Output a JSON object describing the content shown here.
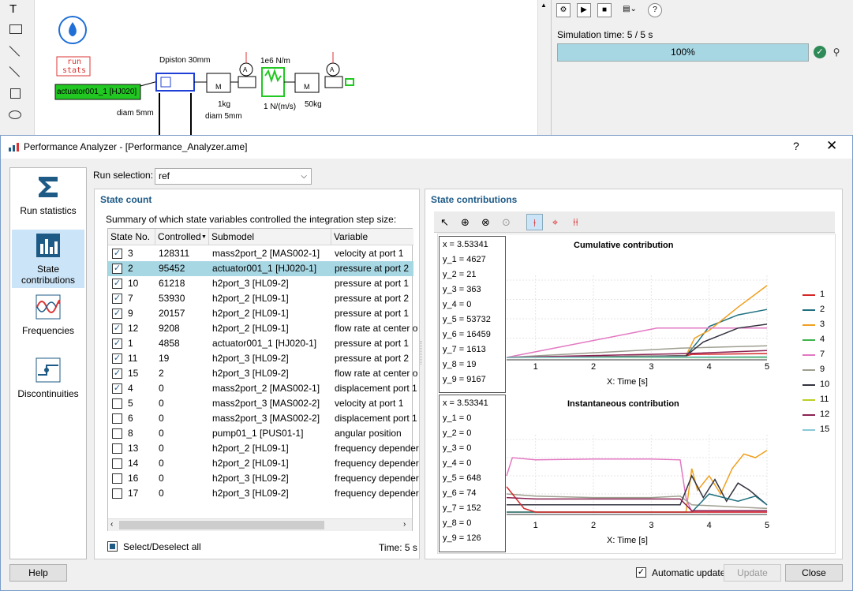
{
  "canvas": {
    "run_stats_label": "run\nstats",
    "actuator_label": "actuator001_1 [HJ020]",
    "labels": {
      "dpiston": "Dpiston 30mm",
      "spring": "1e6 N/m",
      "damper": "1 N/(m/s)",
      "mass1": "1kg",
      "diam1": "diam 5mm",
      "diam2": "diam 5mm",
      "mass2": "50kg"
    }
  },
  "simulation": {
    "time_text": "Simulation time: 5 / 5 s",
    "progress_text": "100%",
    "progress": 100
  },
  "dialog": {
    "title": "Performance Analyzer - [Performance_Analyzer.ame]",
    "help_glyph": "?",
    "close_glyph": "✕",
    "nav": [
      {
        "label": "Run statistics",
        "icon": "sigma-icon",
        "selected": false
      },
      {
        "label": "State contributions",
        "icon": "bar-chart-icon",
        "selected": true
      },
      {
        "label": "Frequencies",
        "icon": "wave-icon",
        "selected": false
      },
      {
        "label": "Discontinuities",
        "icon": "step-icon",
        "selected": false
      }
    ],
    "run_selection_label": "Run selection:",
    "run_selection_value": "ref",
    "state_count": {
      "title": "State count",
      "summary": "Summary of which state variables controlled the integration step size:",
      "columns": [
        "State No.",
        "Controlled",
        "Submodel",
        "Variable"
      ],
      "rows": [
        {
          "checked": true,
          "no": "3",
          "controlled": "128311",
          "submodel": "mass2port_2 [MAS002-1]",
          "variable": "velocity at port 1",
          "selected": false
        },
        {
          "checked": true,
          "no": "2",
          "controlled": "95452",
          "submodel": "actuator001_1 [HJ020-1]",
          "variable": "pressure at port 2",
          "selected": true
        },
        {
          "checked": true,
          "no": "10",
          "controlled": "61218",
          "submodel": "h2port_3 [HL09-2]",
          "variable": "pressure at port 1",
          "selected": false
        },
        {
          "checked": true,
          "no": "7",
          "controlled": "53930",
          "submodel": "h2port_2 [HL09-1]",
          "variable": "pressure at port 2",
          "selected": false
        },
        {
          "checked": true,
          "no": "9",
          "controlled": "20157",
          "submodel": "h2port_2 [HL09-1]",
          "variable": "pressure at port 1",
          "selected": false
        },
        {
          "checked": true,
          "no": "12",
          "controlled": "9208",
          "submodel": "h2port_2 [HL09-1]",
          "variable": "flow rate at center o",
          "selected": false
        },
        {
          "checked": true,
          "no": "1",
          "controlled": "4858",
          "submodel": "actuator001_1 [HJ020-1]",
          "variable": "pressure at port 1",
          "selected": false
        },
        {
          "checked": true,
          "no": "11",
          "controlled": "19",
          "submodel": "h2port_3 [HL09-2]",
          "variable": "pressure at port 2",
          "selected": false
        },
        {
          "checked": true,
          "no": "15",
          "controlled": "2",
          "submodel": "h2port_3 [HL09-2]",
          "variable": "flow rate at center o",
          "selected": false
        },
        {
          "checked": true,
          "no": "4",
          "controlled": "0",
          "submodel": "mass2port_2 [MAS002-1]",
          "variable": "displacement port 1",
          "selected": false
        },
        {
          "checked": false,
          "no": "5",
          "controlled": "0",
          "submodel": "mass2port_3 [MAS002-2]",
          "variable": "velocity at port 1",
          "selected": false
        },
        {
          "checked": false,
          "no": "6",
          "controlled": "0",
          "submodel": "mass2port_3 [MAS002-2]",
          "variable": "displacement port 1",
          "selected": false
        },
        {
          "checked": false,
          "no": "8",
          "controlled": "0",
          "submodel": "pump01_1 [PUS01-1]",
          "variable": "angular position",
          "selected": false
        },
        {
          "checked": false,
          "no": "13",
          "controlled": "0",
          "submodel": "h2port_2 [HL09-1]",
          "variable": "frequency depender",
          "selected": false
        },
        {
          "checked": false,
          "no": "14",
          "controlled": "0",
          "submodel": "h2port_2 [HL09-1]",
          "variable": "frequency depender",
          "selected": false
        },
        {
          "checked": false,
          "no": "16",
          "controlled": "0",
          "submodel": "h2port_3 [HL09-2]",
          "variable": "frequency depender",
          "selected": false
        },
        {
          "checked": false,
          "no": "17",
          "controlled": "0",
          "submodel": "h2port_3 [HL09-2]",
          "variable": "frequency depender",
          "selected": false
        }
      ],
      "select_all_label": "Select/Deselect all",
      "time_label": "Time: 5 s"
    },
    "contributions": {
      "title": "State contributions",
      "cumulative_readout": [
        "x   = 3.53341",
        "y_1 = 4627",
        "y_2 = 21",
        "y_3 = 363",
        "y_4 = 0",
        "y_5 = 53732",
        "y_6 = 16459",
        "y_7 = 1613",
        "y_8 = 19",
        "y_9 = 9167"
      ],
      "instant_readout": [
        "x   = 3.53341",
        "y_1 = 0",
        "y_2 = 0",
        "y_3 = 0",
        "y_4 = 0",
        "y_5 = 648",
        "y_6 = 74",
        "y_7 = 152",
        "y_8 = 0",
        "y_9 = 126"
      ]
    },
    "auto_update_label": "Automatic update",
    "auto_update_checked": true,
    "buttons": {
      "help": "Help",
      "update": "Update",
      "close": "Close"
    }
  },
  "chart_data": [
    {
      "type": "line",
      "title": "Cumulative contribution",
      "xlabel": "X: Time [s]",
      "xlim": [
        0.5,
        5
      ],
      "x_ticks": [
        "1",
        "2",
        "3",
        "4",
        "5"
      ],
      "legend_position": "right",
      "series": [
        {
          "name": "1",
          "color": "#d62728",
          "x": [
            0.5,
            3.6,
            3.7,
            5
          ],
          "y": [
            0,
            0.02,
            0.04,
            0.05
          ]
        },
        {
          "name": "2",
          "color": "#1f6f7f",
          "x": [
            0.5,
            3.6,
            3.8,
            4.0,
            4.5,
            5
          ],
          "y": [
            0,
            0.02,
            0.2,
            0.4,
            0.55,
            0.62
          ]
        },
        {
          "name": "3",
          "color": "#f0a020",
          "x": [
            0.5,
            3.6,
            3.75,
            4.0,
            4.5,
            5
          ],
          "y": [
            0,
            0.02,
            0.25,
            0.35,
            0.65,
            0.93
          ]
        },
        {
          "name": "4",
          "color": "#3cb44b",
          "x": [
            0.5,
            5
          ],
          "y": [
            0,
            0
          ]
        },
        {
          "name": "7",
          "color": "#e377c2",
          "x": [
            0.5,
            3.1,
            4.0,
            5
          ],
          "y": [
            0,
            0.38,
            0.38,
            0.38
          ]
        },
        {
          "name": "9",
          "color": "#9e9e90",
          "x": [
            0.5,
            3.5,
            5
          ],
          "y": [
            0,
            0.12,
            0.15
          ]
        },
        {
          "name": "10",
          "color": "#333340",
          "x": [
            0.5,
            3.6,
            3.9,
            4.5,
            5
          ],
          "y": [
            0,
            0.02,
            0.2,
            0.38,
            0.43
          ]
        },
        {
          "name": "11",
          "color": "#bcd022",
          "x": [
            0.5,
            5
          ],
          "y": [
            0,
            0.01
          ]
        },
        {
          "name": "12",
          "color": "#8b2252",
          "x": [
            0.5,
            3.6,
            5
          ],
          "y": [
            0,
            0.05,
            0.09
          ]
        },
        {
          "name": "15",
          "color": "#88c8d8",
          "x": [
            0.5,
            5
          ],
          "y": [
            0,
            0.01
          ]
        }
      ]
    },
    {
      "type": "line",
      "title": "Instantaneous contribution",
      "xlabel": "X: Time [s]",
      "xlim": [
        0.5,
        5
      ],
      "x_ticks": [
        "1",
        "2",
        "3",
        "4",
        "5"
      ],
      "series": [
        {
          "name": "3",
          "color": "#f0a020",
          "x": [
            0.5,
            3.6,
            3.7,
            3.8,
            4.0,
            4.2,
            4.4,
            4.6,
            4.8,
            5
          ],
          "y": [
            0,
            0,
            0.6,
            0.3,
            0.5,
            0.25,
            0.6,
            0.8,
            0.75,
            0.85
          ]
        },
        {
          "name": "7",
          "color": "#e377c2",
          "x": [
            0.5,
            0.6,
            1.0,
            2.0,
            3.0,
            3.5,
            3.6,
            3.7,
            5
          ],
          "y": [
            0.5,
            0.75,
            0.72,
            0.73,
            0.73,
            0.72,
            0.2,
            0,
            0
          ]
        },
        {
          "name": "9",
          "color": "#9e9e90",
          "x": [
            0.5,
            1.0,
            2.0,
            3.0,
            3.5,
            3.7,
            5
          ],
          "y": [
            0.25,
            0.22,
            0.2,
            0.2,
            0.22,
            0.1,
            0.05
          ]
        },
        {
          "name": "10",
          "color": "#333340",
          "x": [
            0.5,
            3.5,
            3.7,
            3.9,
            4.1,
            4.3,
            4.5,
            4.7,
            5
          ],
          "y": [
            0.1,
            0.1,
            0.5,
            0.2,
            0.45,
            0.15,
            0.4,
            0.3,
            0.1
          ]
        },
        {
          "name": "2",
          "color": "#1f6f7f",
          "x": [
            0.5,
            3.7,
            4.0,
            4.5,
            4.8,
            5
          ],
          "y": [
            0,
            0,
            0.25,
            0.15,
            0.22,
            0.1
          ]
        },
        {
          "name": "1",
          "color": "#d62728",
          "x": [
            0.5,
            0.65,
            0.8,
            1.0,
            5
          ],
          "y": [
            0.35,
            0.2,
            0.05,
            0,
            0
          ]
        },
        {
          "name": "12",
          "color": "#8b2252",
          "x": [
            0.5,
            1.0,
            3.5,
            3.7,
            5
          ],
          "y": [
            0.2,
            0.18,
            0.18,
            0.02,
            0.02
          ]
        }
      ]
    }
  ]
}
